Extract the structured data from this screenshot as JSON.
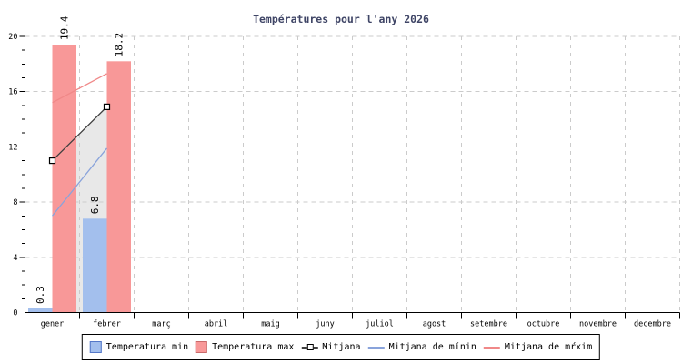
{
  "colors": {
    "background": "#ffffff",
    "axis": "#000000",
    "grid": "#cbcbcb",
    "area_fill": "#e8e8e8",
    "title": "#3f4566",
    "text": "#000000",
    "marker_fill": "#ffffff",
    "marker_stroke": "#000000"
  },
  "chart_data": {
    "type": "bar",
    "title": "Températures pour l'any 2026",
    "xlabel": "",
    "ylabel": "",
    "ylim": [
      0,
      20
    ],
    "yticks": [
      0,
      4,
      8,
      12,
      16,
      20
    ],
    "y_minor_step": 1,
    "grid": true,
    "legend_position": "bottom",
    "categories": [
      "gener",
      "febrer",
      "març",
      "abril",
      "maig",
      "juny",
      "juliol",
      "agost",
      "setembre",
      "octubre",
      "novembre",
      "decembre"
    ],
    "series": [
      {
        "name": "Temperatura min",
        "kind": "bar",
        "color": "#a3bfed",
        "border": "#5578c8",
        "values": [
          0.3,
          6.8,
          null,
          null,
          null,
          null,
          null,
          null,
          null,
          null,
          null,
          null
        ],
        "labels": [
          "0.3",
          "6.8",
          "",
          "",
          "",
          "",
          "",
          "",
          "",
          "",
          "",
          ""
        ]
      },
      {
        "name": "Temperatura max",
        "kind": "bar",
        "color": "#f89898",
        "border": "#c96a6a",
        "values": [
          19.4,
          18.2,
          null,
          null,
          null,
          null,
          null,
          null,
          null,
          null,
          null,
          null
        ],
        "labels": [
          "19.4",
          "18.2",
          "",
          "",
          "",
          "",
          "",
          "",
          "",
          "",
          "",
          ""
        ]
      },
      {
        "name": "Mitjana",
        "kind": "line",
        "marker": "square",
        "color": "#3f3f3f",
        "area": true,
        "values": [
          11,
          14.9,
          null,
          null,
          null,
          null,
          null,
          null,
          null,
          null,
          null,
          null
        ]
      },
      {
        "name": "Mitjana de mínin",
        "kind": "line",
        "color": "#89a3db",
        "values": [
          7,
          11.9,
          null,
          null,
          null,
          null,
          null,
          null,
          null,
          null,
          null,
          null
        ]
      },
      {
        "name": "Mitjana de mŕxim",
        "kind": "line",
        "color": "#f08888",
        "values": [
          15.2,
          17.3,
          null,
          null,
          null,
          null,
          null,
          null,
          null,
          null,
          null,
          null
        ]
      }
    ]
  }
}
